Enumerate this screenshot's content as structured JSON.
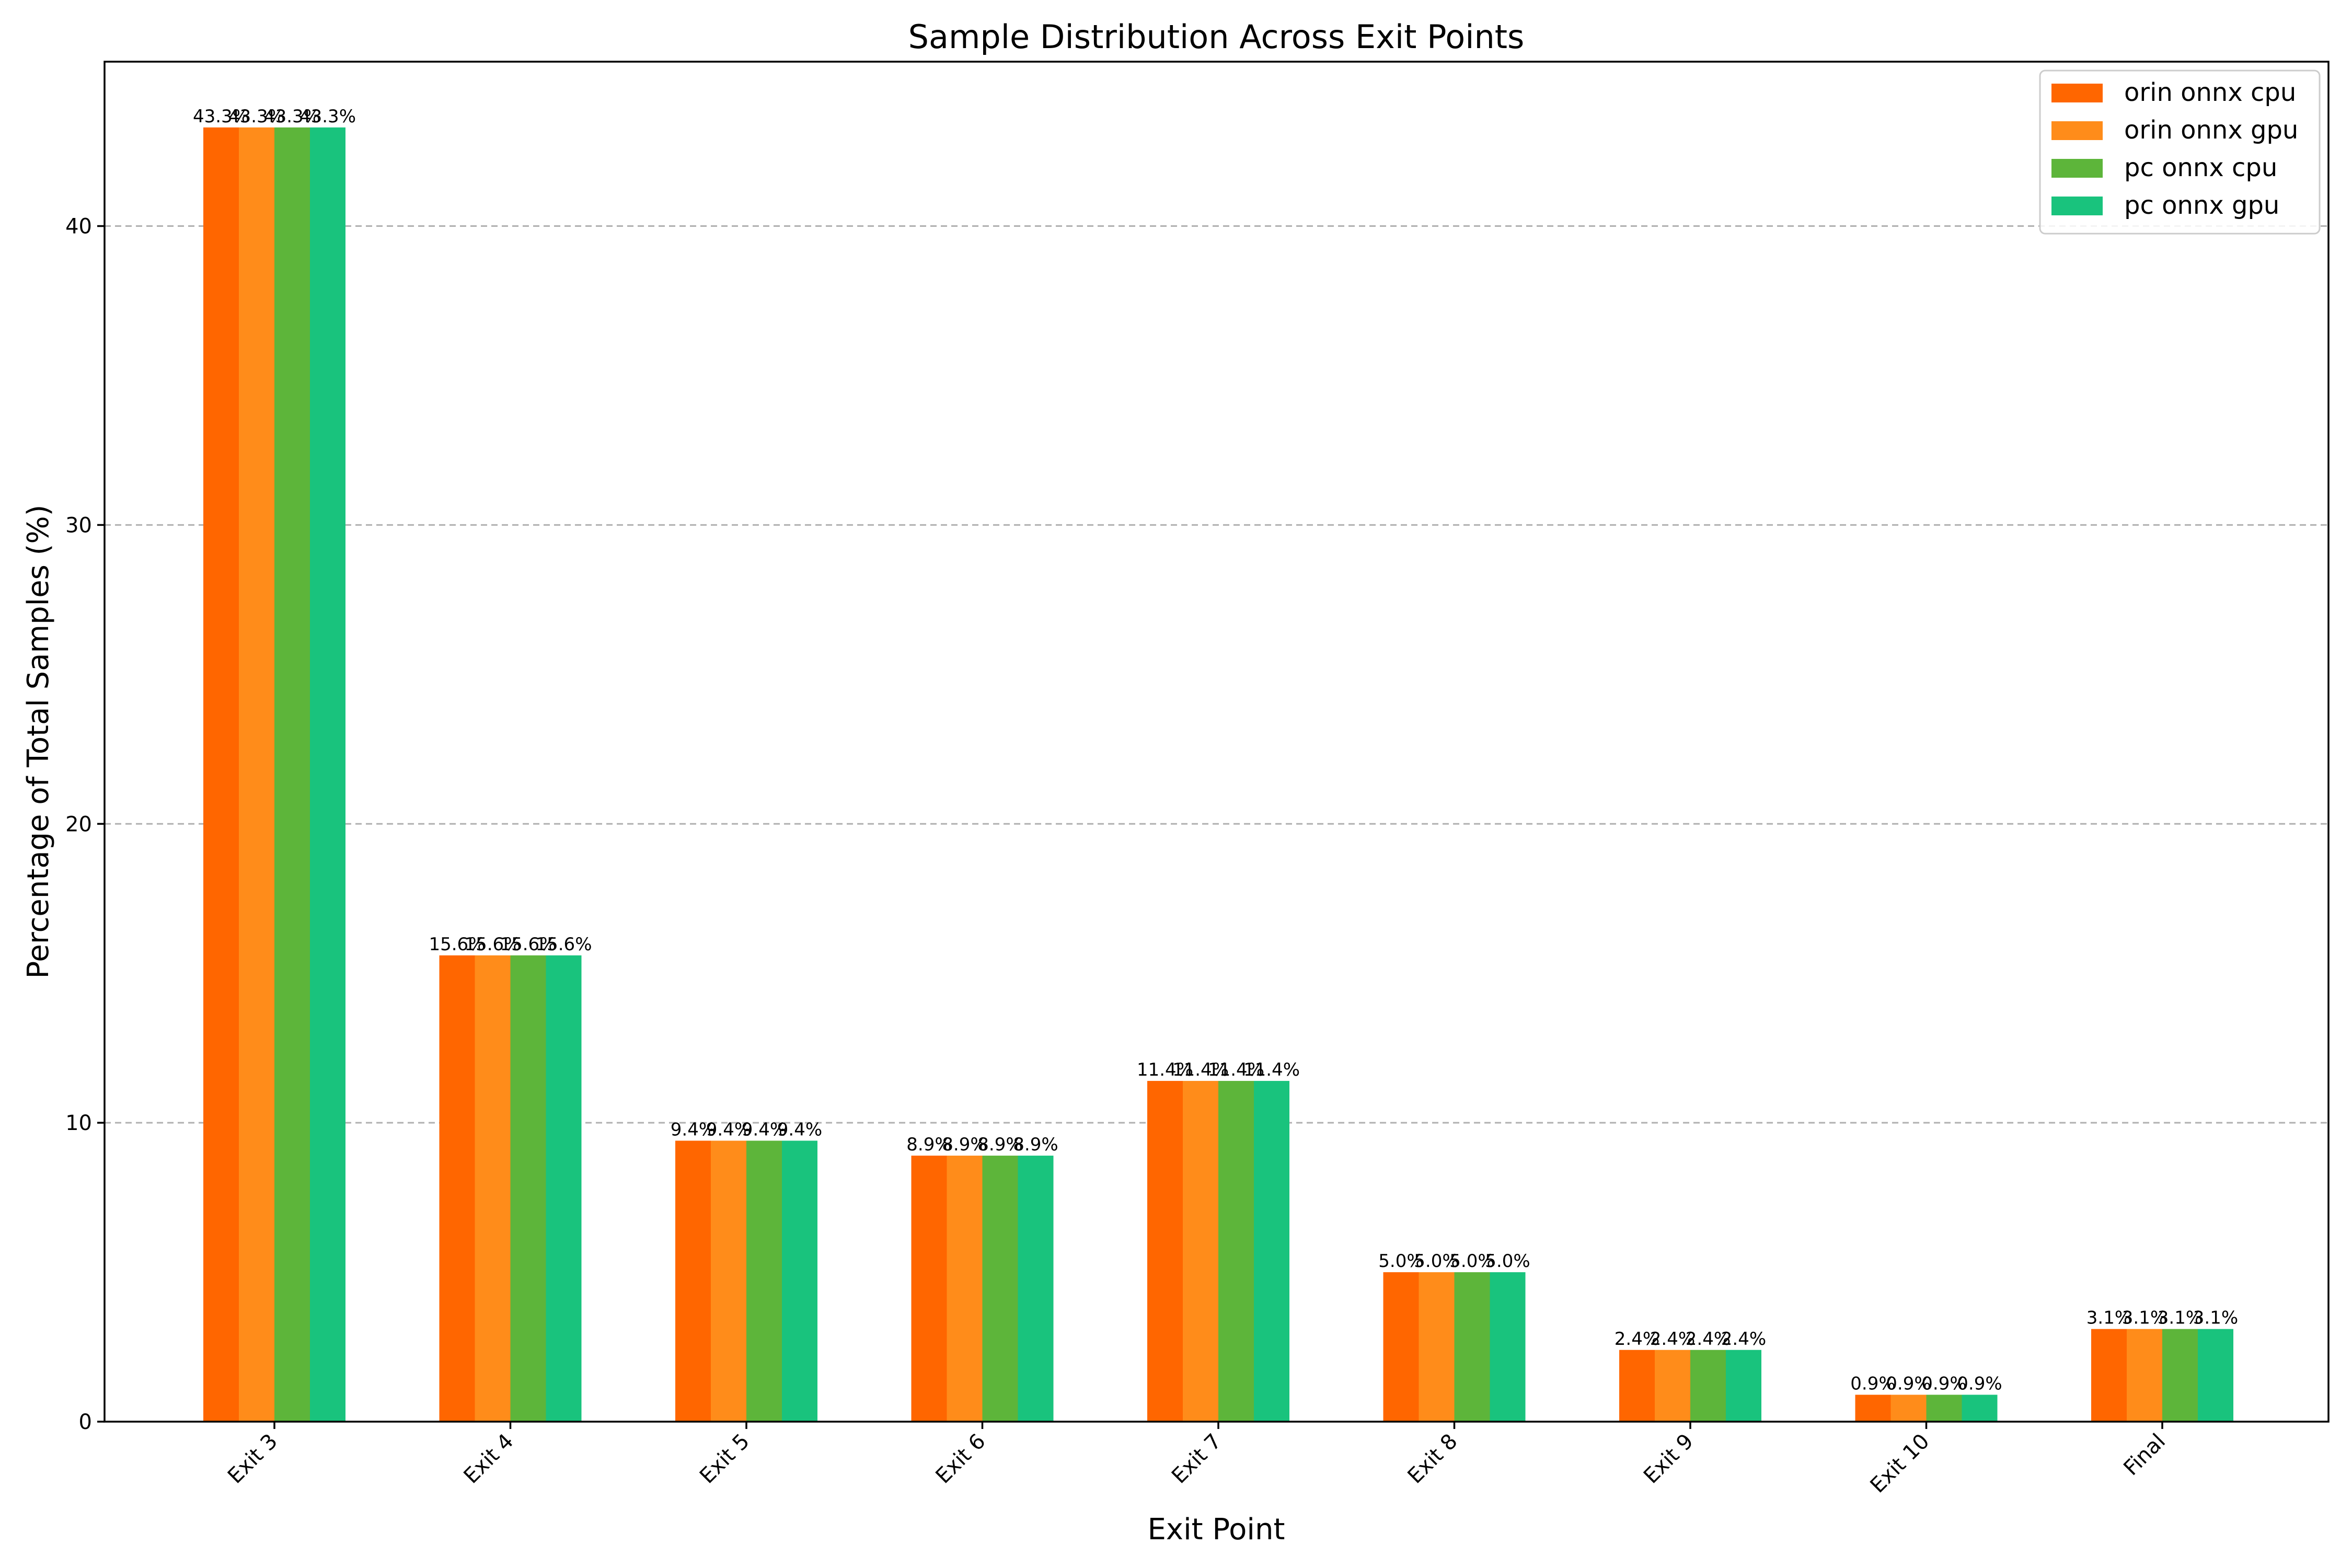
{
  "chart_data": {
    "type": "bar",
    "title": "Sample Distribution Across Exit Points",
    "xlabel": "Exit Point",
    "ylabel": "Percentage of Total Samples (%)",
    "ylim": [
      0,
      45.5
    ],
    "yticks": [
      0,
      10,
      20,
      30,
      40
    ],
    "grid": "y-dashed",
    "legend_position": "top-right",
    "categories": [
      "Exit 3",
      "Exit 4",
      "Exit 5",
      "Exit 6",
      "Exit 7",
      "Exit 8",
      "Exit 9",
      "Exit 10",
      "Final"
    ],
    "series": [
      {
        "name": "orin onnx cpu",
        "color": "#ff6600",
        "values": [
          43.3,
          15.6,
          9.4,
          8.9,
          11.4,
          5.0,
          2.4,
          0.9,
          3.1
        ]
      },
      {
        "name": "orin onnx gpu",
        "color": "#ff8c1a",
        "values": [
          43.3,
          15.6,
          9.4,
          8.9,
          11.4,
          5.0,
          2.4,
          0.9,
          3.1
        ]
      },
      {
        "name": "pc onnx cpu",
        "color": "#5db53a",
        "values": [
          43.3,
          15.6,
          9.4,
          8.9,
          11.4,
          5.0,
          2.4,
          0.9,
          3.1
        ]
      },
      {
        "name": "pc onnx gpu",
        "color": "#19c37d",
        "values": [
          43.3,
          15.6,
          9.4,
          8.9,
          11.4,
          5.0,
          2.4,
          0.9,
          3.1
        ]
      }
    ],
    "value_label_format": "{v}%"
  }
}
